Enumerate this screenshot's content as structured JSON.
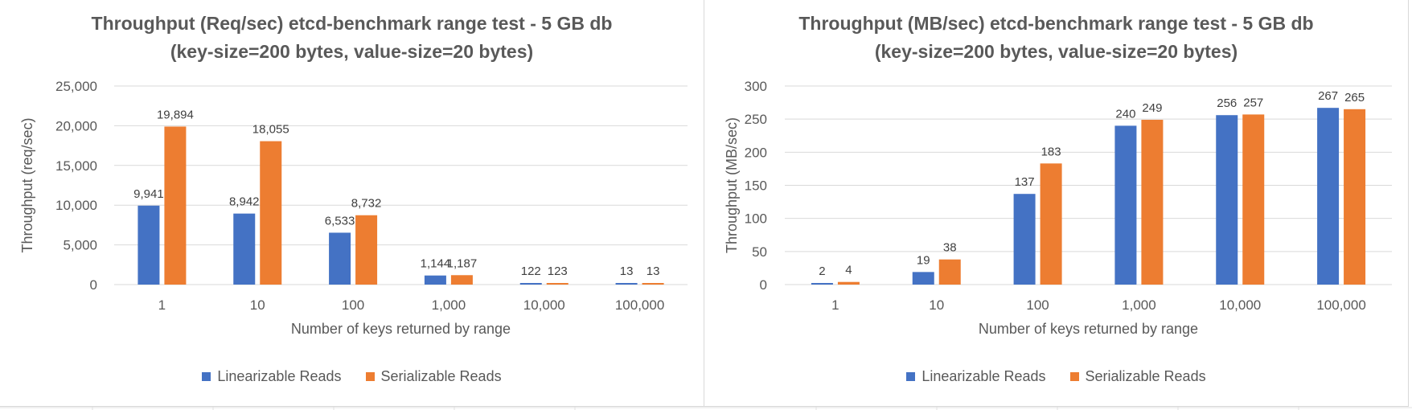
{
  "colors": {
    "linearizable": "#4472c4",
    "serializable": "#ed7d31",
    "gridline": "#d9d9d9",
    "text": "#595959"
  },
  "chart_data": [
    {
      "type": "bar",
      "title": "Throughput (Req/sec) etcd-benchmark range test - 5 GB db",
      "subtitle": "(key-size=200 bytes, value-size=20 bytes)",
      "xlabel": "Number of keys returned by range",
      "ylabel": "Throughput (req/sec)",
      "categories": [
        "1",
        "10",
        "100",
        "1,000",
        "10,000",
        "100,000"
      ],
      "ylim": [
        0,
        25000
      ],
      "yticks": [
        "0",
        "5,000",
        "10,000",
        "15,000",
        "20,000",
        "25,000"
      ],
      "grid": true,
      "legend_position": "bottom",
      "series": [
        {
          "name": "Linearizable Reads",
          "values": [
            9941,
            8942,
            6533,
            1144,
            122,
            13
          ],
          "labels": [
            "9,941",
            "8,942",
            "6,533",
            "1,144",
            "122",
            "13"
          ]
        },
        {
          "name": "Serializable Reads",
          "values": [
            19894,
            18055,
            8732,
            1187,
            123,
            13
          ],
          "labels": [
            "19,894",
            "18,055",
            "8,732",
            "1,187",
            "123",
            "13"
          ]
        }
      ]
    },
    {
      "type": "bar",
      "title": "Throughput (MB/sec) etcd-benchmark range test - 5 GB db",
      "subtitle": "(key-size=200 bytes, value-size=20 bytes)",
      "xlabel": "Number of keys returned by range",
      "ylabel": "Throughput (MB/sec)",
      "categories": [
        "1",
        "10",
        "100",
        "1,000",
        "10,000",
        "100,000"
      ],
      "ylim": [
        0,
        300
      ],
      "yticks": [
        "0",
        "50",
        "100",
        "150",
        "200",
        "250",
        "300"
      ],
      "grid": true,
      "legend_position": "bottom",
      "series": [
        {
          "name": "Linearizable Reads",
          "values": [
            2,
            19,
            137,
            240,
            256,
            267
          ],
          "labels": [
            "2",
            "19",
            "137",
            "240",
            "256",
            "267"
          ]
        },
        {
          "name": "Serializable Reads",
          "values": [
            4,
            38,
            183,
            249,
            257,
            265
          ],
          "labels": [
            "4",
            "38",
            "183",
            "249",
            "257",
            "265"
          ]
        }
      ]
    }
  ]
}
